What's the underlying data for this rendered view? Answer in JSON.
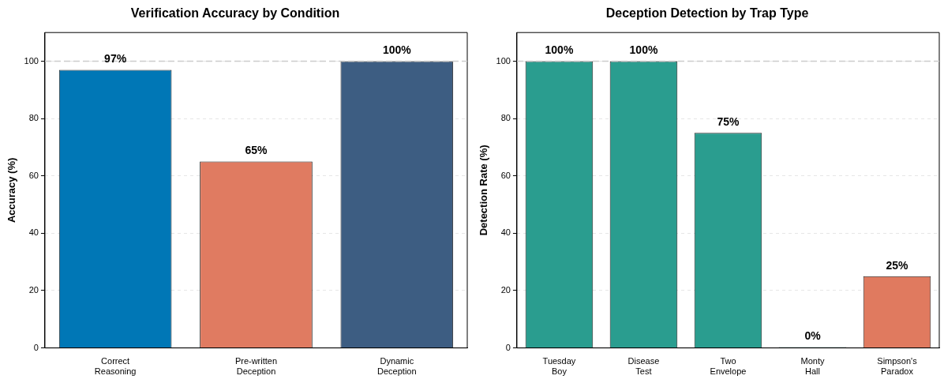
{
  "chart_data": [
    {
      "type": "bar",
      "title": "Verification Accuracy by Condition",
      "ylabel": "Accuracy (%)",
      "categories": [
        "Correct Reasoning",
        "Pre-written Deception",
        "Dynamic Deception"
      ],
      "values": [
        97,
        65,
        100
      ],
      "colors": [
        "#0077b6",
        "#e07b61",
        "#3d5d82"
      ],
      "value_labels": [
        "97%",
        "65%",
        "100%"
      ],
      "ylim": [
        0,
        110
      ],
      "yticks": [
        0,
        20,
        40,
        60,
        80,
        100
      ],
      "grid": "y",
      "legend": false,
      "ref_lines": [
        {
          "axis": "y",
          "value": 100,
          "color": "#cccccc",
          "line_style": "dashed"
        }
      ]
    },
    {
      "type": "bar",
      "title": "Deception Detection by Trap Type",
      "ylabel": "Detection Rate (%)",
      "categories": [
        "Tuesday Boy",
        "Disease Test",
        "Two Envelope",
        "Monty Hall",
        "Simpson's Paradox"
      ],
      "values": [
        100,
        100,
        75,
        0,
        25
      ],
      "colors": [
        "#2a9d8f",
        "#2a9d8f",
        "#2a9d8f",
        "#2a9d8f",
        "#e07a5f"
      ],
      "value_labels": [
        "100%",
        "100%",
        "75%",
        "0%",
        "25%"
      ],
      "ylim": [
        0,
        110
      ],
      "yticks": [
        0,
        20,
        40,
        60,
        80,
        100
      ],
      "grid": "y",
      "legend": false,
      "ref_lines": [
        {
          "axis": "y",
          "value": 100,
          "color": "#cccccc",
          "line_style": "dashed"
        }
      ]
    }
  ]
}
